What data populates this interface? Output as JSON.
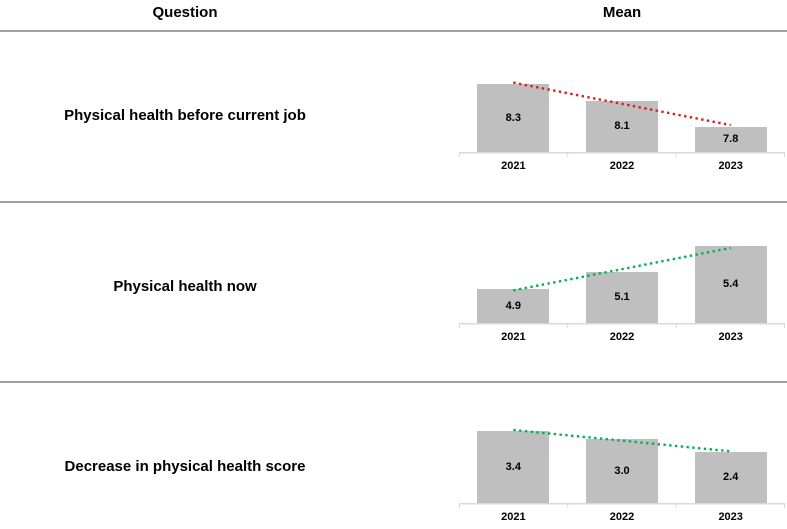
{
  "header": {
    "question": "Question",
    "mean": "Mean"
  },
  "rows": [
    {
      "question": "Physical health before current job"
    },
    {
      "question": "Physical health now"
    },
    {
      "question": "Decrease in physical health score"
    }
  ],
  "chart_data": [
    {
      "type": "bar",
      "title": "Physical health before current job",
      "categories": [
        "2021",
        "2022",
        "2023"
      ],
      "values": [
        8.3,
        8.1,
        7.8
      ],
      "labels": [
        "8.3",
        "8.1",
        "7.8"
      ],
      "ylim": [
        7.5,
        8.5
      ],
      "bar_color": "#bfbfbf",
      "axis_color": "#d9d9d9",
      "grid": false,
      "trend": {
        "type": "linear",
        "style": "dotted",
        "color": "#d42020"
      }
    },
    {
      "type": "bar",
      "title": "Physical health now",
      "categories": [
        "2021",
        "2022",
        "2023"
      ],
      "values": [
        4.9,
        5.1,
        5.4
      ],
      "labels": [
        "4.9",
        "5.1",
        "5.4"
      ],
      "ylim": [
        4.5,
        5.5
      ],
      "bar_color": "#bfbfbf",
      "axis_color": "#d9d9d9",
      "grid": false,
      "trend": {
        "type": "linear",
        "style": "dotted",
        "color": "#00b050"
      }
    },
    {
      "type": "bar",
      "title": "Decrease in physical health score",
      "categories": [
        "2021",
        "2022",
        "2023"
      ],
      "values": [
        3.4,
        3.0,
        2.4
      ],
      "labels": [
        "3.4",
        "3.0",
        "2.4"
      ],
      "ylim": [
        0,
        4
      ],
      "bar_color": "#bfbfbf",
      "axis_color": "#d9d9d9",
      "grid": false,
      "trend": {
        "type": "linear",
        "style": "dotted",
        "color": "#00b050"
      }
    }
  ]
}
